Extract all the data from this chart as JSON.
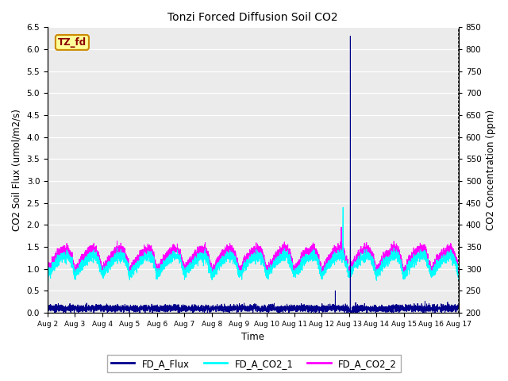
{
  "title": "Tonzi Forced Diffusion Soil CO2",
  "xlabel": "Time",
  "ylabel_left": "CO2 Soil Flux (umol/m2/s)",
  "ylabel_right": "CO2 Concentration (ppm)",
  "ylim_left": [
    0,
    6.5
  ],
  "ylim_right": [
    200,
    850
  ],
  "xlim": [
    0,
    15
  ],
  "xtick_labels": [
    "Aug 2",
    "Aug 3",
    "Aug 4",
    "Aug 5",
    "Aug 6",
    "Aug 7",
    "Aug 8",
    "Aug 9",
    "Aug 10",
    "Aug 11",
    "Aug 12",
    "Aug 13",
    "Aug 14",
    "Aug 15",
    "Aug 16",
    "Aug 17"
  ],
  "color_flux": "#00008B",
  "color_co2_1": "#00FFFF",
  "color_co2_2": "#FF00FF",
  "label_flux": "FD_A_Flux",
  "label_co2_1": "FD_A_CO2_1",
  "label_co2_2": "FD_A_CO2_2",
  "tag_label": "TZ_fd",
  "tag_bg": "#FFFF99",
  "tag_border": "#CC8800",
  "background_color": "#EBEBEB",
  "grid_color": "#FFFFFF",
  "yticks_left": [
    0.0,
    0.5,
    1.0,
    1.5,
    2.0,
    2.5,
    3.0,
    3.5,
    4.0,
    4.5,
    5.0,
    5.5,
    6.0,
    6.5
  ],
  "yticks_right": [
    200,
    250,
    300,
    350,
    400,
    450,
    500,
    550,
    600,
    650,
    700,
    750,
    800,
    850
  ],
  "flux_base": 0.1,
  "flux_noise": 0.04,
  "flux_spike_day": 11.05,
  "flux_spike_val": 6.3,
  "flux_spike2_day": 10.5,
  "flux_spike2_val": 0.5,
  "co2_1_base": 0.85,
  "co2_1_amp": 0.45,
  "co2_2_base": 0.95,
  "co2_2_amp": 0.5,
  "co2_spike_day": 10.78,
  "co2_1_spike_val": 2.4,
  "co2_2_spike_val": 1.95,
  "co2_2_spike2_day": 10.72,
  "co2_2_spike2_val": 1.9
}
